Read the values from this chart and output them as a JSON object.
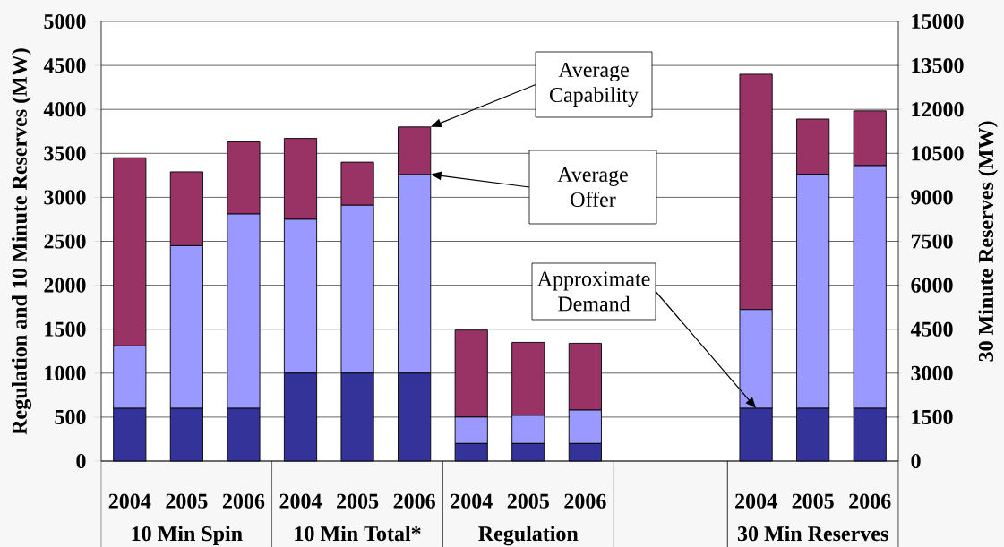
{
  "chart_data": {
    "type": "bar",
    "stacked": true,
    "categories": [
      "2004",
      "2005",
      "2006",
      "2004",
      "2005",
      "2006",
      "2004",
      "2005",
      "2006",
      null,
      null,
      "2004",
      "2005",
      "2006"
    ],
    "ylabel": "Regulation and 10 Minute Reserves (MW)",
    "y2label": "30 Minute Reserves (MW)",
    "ylim": [
      0,
      5000
    ],
    "yticks": [
      0,
      500,
      1000,
      1500,
      2000,
      2500,
      3000,
      3500,
      4000,
      4500,
      5000
    ],
    "y2lim": [
      0,
      15000
    ],
    "y2ticks": [
      0,
      1500,
      3000,
      4500,
      6000,
      7500,
      9000,
      10500,
      12000,
      13500,
      15000
    ],
    "grid": "y",
    "series": [
      {
        "color": "#333399",
        "values": [
          600,
          600,
          600,
          1000,
          1000,
          1000,
          200,
          200,
          200,
          null,
          null,
          null,
          null,
          null
        ]
      },
      {
        "name": "Average Offer",
        "color": "#9999ff",
        "values": [
          710,
          1850,
          2210,
          1750,
          1910,
          2260,
          300,
          320,
          380,
          null,
          null,
          null,
          null,
          null
        ]
      },
      {
        "name": "Average Capability",
        "color": "#993366",
        "values": [
          2140,
          840,
          820,
          920,
          490,
          540,
          990,
          830,
          760,
          null,
          null,
          null,
          null,
          null
        ]
      },
      {
        "name": "Approximate Demand",
        "color": "#333399",
        "axis": "y2",
        "values": [
          null,
          null,
          null,
          null,
          null,
          null,
          null,
          null,
          null,
          null,
          null,
          1800,
          1800,
          1800
        ]
      },
      {
        "color": "#9999ff",
        "axis": "y2",
        "values": [
          null,
          null,
          null,
          null,
          null,
          null,
          null,
          null,
          null,
          null,
          null,
          3370,
          7990,
          8280
        ]
      },
      {
        "color": "#993366",
        "axis": "y2",
        "values": [
          null,
          null,
          null,
          null,
          null,
          null,
          null,
          null,
          null,
          null,
          null,
          8030,
          1880,
          1870
        ]
      }
    ],
    "annotations": [
      "10 Min Spin",
      "10 Min Total*",
      "Regulation",
      "30 Min Reserves"
    ]
  }
}
